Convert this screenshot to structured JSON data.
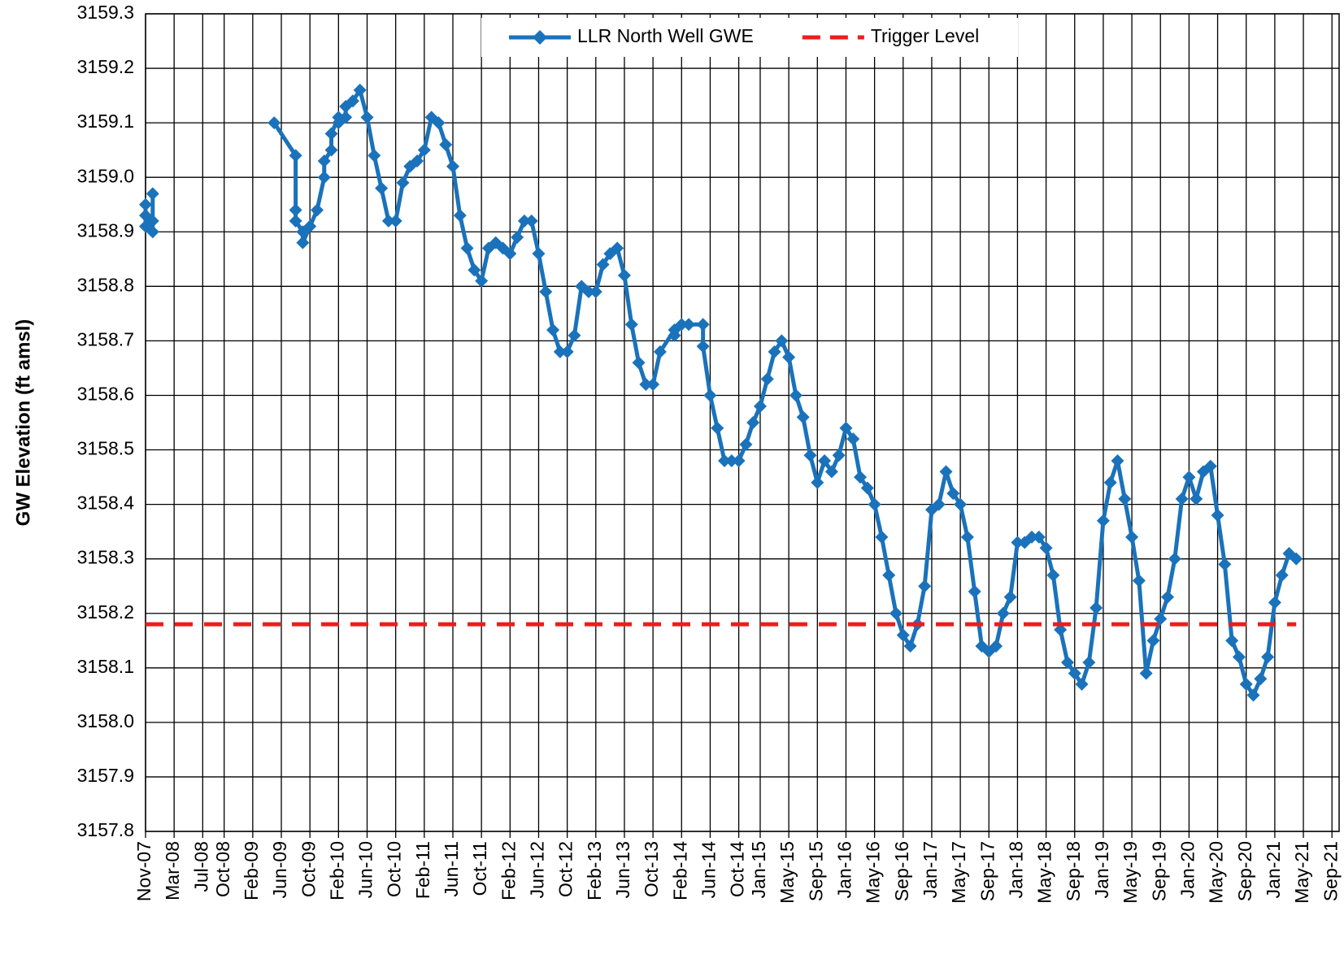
{
  "chart_data": {
    "type": "line",
    "y_label": "GW Elevation (ft amsl)",
    "ylim": [
      3157.8,
      3159.3
    ],
    "yticks": [
      3157.8,
      3157.9,
      {
        "value": 3158.0,
        "label": "3158.0"
      },
      3158.1,
      3158.2,
      3158.3,
      3158.4,
      3158.5,
      3158.6,
      3158.7,
      3158.8,
      3158.9,
      {
        "value": 3159.0,
        "label": "3159.0"
      },
      3159.1,
      3159.2,
      3159.3
    ],
    "xlim": [
      "2007-11",
      "2021-10"
    ],
    "xticks": [
      {
        "value": "2007-11",
        "label": "Nov-07"
      },
      {
        "value": "2008-03",
        "label": "Mar-08"
      },
      {
        "value": "2008-07",
        "label": "Jul-08"
      },
      {
        "value": "2008-10",
        "label": "Oct-08"
      },
      {
        "value": "2009-02",
        "label": "Feb-09"
      },
      {
        "value": "2009-06",
        "label": "Jun-09"
      },
      {
        "value": "2009-10",
        "label": "Oct-09"
      },
      {
        "value": "2010-02",
        "label": "Feb-10"
      },
      {
        "value": "2010-06",
        "label": "Jun-10"
      },
      {
        "value": "2010-10",
        "label": "Oct-10"
      },
      {
        "value": "2011-02",
        "label": "Feb-11"
      },
      {
        "value": "2011-06",
        "label": "Jun-11"
      },
      {
        "value": "2011-10",
        "label": "Oct-11"
      },
      {
        "value": "2012-02",
        "label": "Feb-12"
      },
      {
        "value": "2012-06",
        "label": "Jun-12"
      },
      {
        "value": "2012-10",
        "label": "Oct-12"
      },
      {
        "value": "2013-02",
        "label": "Feb-13"
      },
      {
        "value": "2013-06",
        "label": "Jun-13"
      },
      {
        "value": "2013-10",
        "label": "Oct-13"
      },
      {
        "value": "2014-02",
        "label": "Feb-14"
      },
      {
        "value": "2014-06",
        "label": "Jun-14"
      },
      {
        "value": "2014-10",
        "label": "Oct-14"
      },
      {
        "value": "2015-01",
        "label": "Jan-15"
      },
      {
        "value": "2015-05",
        "label": "May-15"
      },
      {
        "value": "2015-09",
        "label": "Sep-15"
      },
      {
        "value": "2016-01",
        "label": "Jan-16"
      },
      {
        "value": "2016-05",
        "label": "May-16"
      },
      {
        "value": "2016-09",
        "label": "Sep-16"
      },
      {
        "value": "2017-01",
        "label": "Jan-17"
      },
      {
        "value": "2017-05",
        "label": "May-17"
      },
      {
        "value": "2017-09",
        "label": "Sep-17"
      },
      {
        "value": "2018-01",
        "label": "Jan-18"
      },
      {
        "value": "2018-05",
        "label": "May-18"
      },
      {
        "value": "2018-09",
        "label": "Sep-18"
      },
      {
        "value": "2019-01",
        "label": "Jan-19"
      },
      {
        "value": "2019-05",
        "label": "May-19"
      },
      {
        "value": "2019-09",
        "label": "Sep-19"
      },
      {
        "value": "2020-01",
        "label": "Jan-20"
      },
      {
        "value": "2020-05",
        "label": "May-20"
      },
      {
        "value": "2020-09",
        "label": "Sep-20"
      },
      {
        "value": "2021-01",
        "label": "Jan-21"
      },
      {
        "value": "2021-05",
        "label": "May-21"
      },
      {
        "value": "2021-09",
        "label": "Sep-21"
      }
    ],
    "grid": true,
    "legend": "top",
    "series": [
      {
        "name": "LLR North Well GWE",
        "color": "#1a72bb",
        "marker": "diamond",
        "dash": false,
        "x": [
          "2007-11",
          "2007-11",
          "2007-11",
          "2007-12",
          "2007-12",
          "2007-12",
          "2009-05",
          "2009-05",
          "2009-08",
          "2009-08",
          "2009-08",
          "2009-09",
          "2009-09",
          "2009-10",
          "2009-11",
          "2009-12",
          "2009-12",
          "2010-01",
          "2010-01",
          "2010-02",
          "2010-02",
          "2010-03",
          "2010-03",
          "2010-04",
          "2010-05",
          "2010-06",
          "2010-07",
          "2010-08",
          "2010-09",
          "2010-10",
          "2010-11",
          "2010-12",
          "2011-01",
          "2011-02",
          "2011-03",
          "2011-04",
          "2011-05",
          "2011-06",
          "2011-07",
          "2011-08",
          "2011-09",
          "2011-10",
          "2011-11",
          "2011-12",
          "2012-01",
          "2012-02",
          "2012-03",
          "2012-04",
          "2012-05",
          "2012-06",
          "2012-07",
          "2012-08",
          "2012-09",
          "2012-10",
          "2012-11",
          "2012-12",
          "2013-01",
          "2013-02",
          "2013-03",
          "2013-04",
          "2013-05",
          "2013-06",
          "2013-07",
          "2013-08",
          "2013-09",
          "2013-10",
          "2013-11",
          "2014-01",
          "2014-01",
          "2014-02",
          "2014-03",
          "2014-05",
          "2014-05",
          "2014-06",
          "2014-07",
          "2014-08",
          "2014-09",
          "2014-10",
          "2014-11",
          "2014-12",
          "2015-01",
          "2015-02",
          "2015-03",
          "2015-04",
          "2015-05",
          "2015-06",
          "2015-07",
          "2015-08",
          "2015-09",
          "2015-10",
          "2015-11",
          "2015-12",
          "2016-01",
          "2016-02",
          "2016-03",
          "2016-04",
          "2016-05",
          "2016-06",
          "2016-07",
          "2016-08",
          "2016-09",
          "2016-10",
          "2016-11",
          "2016-12",
          "2017-01",
          "2017-02",
          "2017-03",
          "2017-04",
          "2017-05",
          "2017-06",
          "2017-07",
          "2017-08",
          "2017-09",
          "2017-10",
          "2017-11",
          "2017-12",
          "2018-01",
          "2018-02",
          "2018-03",
          "2018-04",
          "2018-05",
          "2018-06",
          "2018-07",
          "2018-08",
          "2018-09",
          "2018-10",
          "2018-11",
          "2018-12",
          "2019-01",
          "2019-02",
          "2019-03",
          "2019-04",
          "2019-05",
          "2019-06",
          "2019-07",
          "2019-08",
          "2019-09",
          "2019-10",
          "2019-11",
          "2019-12",
          "2020-01",
          "2020-02",
          "2020-03",
          "2020-04",
          "2020-05",
          "2020-06",
          "2020-07",
          "2020-08",
          "2020-09",
          "2020-10",
          "2020-11",
          "2020-12",
          "2021-01",
          "2021-02",
          "2021-03",
          "2021-04"
        ],
        "values": [
          3158.95,
          3158.91,
          3158.93,
          3158.92,
          3158.9,
          3158.97,
          null,
          3159.1,
          3159.04,
          3158.94,
          3158.92,
          3158.9,
          3158.88,
          3158.91,
          3158.94,
          3159.0,
          3159.03,
          3159.05,
          3159.08,
          3159.11,
          3159.1,
          3159.11,
          3159.13,
          3159.14,
          3159.16,
          3159.11,
          3159.04,
          3158.98,
          3158.92,
          3158.92,
          3158.99,
          3159.02,
          3159.03,
          3159.05,
          3159.11,
          3159.1,
          3159.06,
          3159.02,
          3158.93,
          3158.87,
          3158.83,
          3158.81,
          3158.87,
          3158.88,
          3158.87,
          3158.86,
          3158.89,
          3158.92,
          3158.92,
          3158.86,
          3158.79,
          3158.72,
          3158.68,
          3158.68,
          3158.71,
          3158.8,
          3158.79,
          3158.79,
          3158.84,
          3158.86,
          3158.87,
          3158.82,
          3158.73,
          3158.66,
          3158.62,
          3158.62,
          3158.68,
          3158.72,
          3158.71,
          3158.73,
          3158.73,
          3158.73,
          3158.69,
          3158.6,
          3158.54,
          3158.48,
          3158.48,
          3158.48,
          3158.51,
          3158.55,
          3158.58,
          3158.63,
          3158.68,
          3158.7,
          3158.67,
          3158.6,
          3158.56,
          3158.49,
          3158.44,
          3158.48,
          3158.46,
          3158.49,
          3158.54,
          3158.52,
          3158.45,
          3158.43,
          3158.4,
          3158.34,
          3158.27,
          3158.2,
          3158.16,
          3158.14,
          3158.18,
          3158.25,
          3158.39,
          3158.4,
          3158.46,
          3158.42,
          3158.4,
          3158.34,
          3158.24,
          3158.14,
          3158.13,
          3158.14,
          3158.2,
          3158.23,
          3158.33,
          3158.33,
          3158.34,
          3158.34,
          3158.32,
          3158.27,
          3158.17,
          3158.11,
          3158.09,
          3158.07,
          3158.11,
          3158.21,
          3158.37,
          3158.44,
          3158.48,
          3158.41,
          3158.34,
          3158.26,
          3158.09,
          3158.15,
          3158.19,
          3158.23,
          3158.3,
          3158.41,
          3158.45,
          3158.41,
          3158.46,
          3158.47,
          3158.38,
          3158.29,
          3158.15,
          3158.12,
          3158.07,
          3158.05,
          3158.08,
          3158.12,
          3158.22,
          3158.27,
          3158.31,
          3158.3
        ]
      },
      {
        "name": "Trigger Level",
        "color": "#ee1c1c",
        "marker": "none",
        "dash": true,
        "x": [
          "2007-11",
          "2021-04"
        ],
        "values": [
          3158.18,
          3158.18
        ]
      }
    ]
  }
}
